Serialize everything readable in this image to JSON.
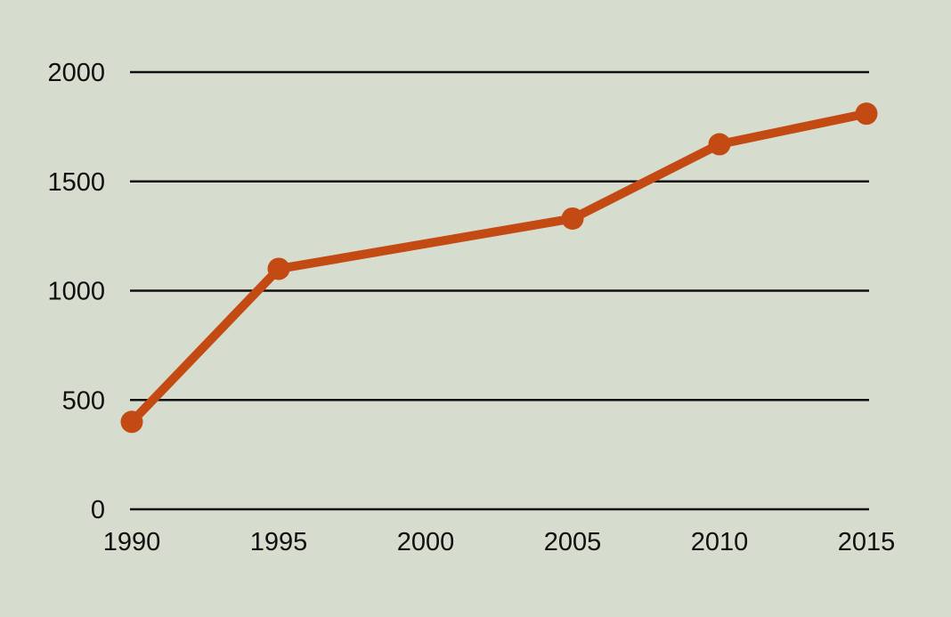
{
  "style": {
    "background_color": "#d6ddce",
    "line_color": "#c44a14",
    "marker_color": "#c44a14",
    "grid_color": "#101010",
    "text_color": "#101010"
  },
  "chart_data": {
    "type": "line",
    "title": "",
    "xlabel": "",
    "ylabel": "",
    "x": [
      1990,
      1995,
      2005,
      2010,
      2015
    ],
    "values": [
      400,
      1100,
      1330,
      1670,
      1810
    ],
    "x_tick_values": [
      1990,
      1995,
      2000,
      2005,
      2010,
      2015
    ],
    "x_tick_labels": [
      "1990",
      "1995",
      "2000",
      "2005",
      "2010",
      "2015"
    ],
    "y_tick_values": [
      0,
      500,
      1000,
      1500,
      2000
    ],
    "y_tick_labels": [
      "0",
      "500",
      "1000",
      "1500",
      "2000"
    ],
    "xlim": [
      1990,
      2015
    ],
    "ylim": [
      0,
      2000
    ],
    "grid": "horizontal-only",
    "legend": "none",
    "marker": "circle",
    "series_name": ""
  }
}
